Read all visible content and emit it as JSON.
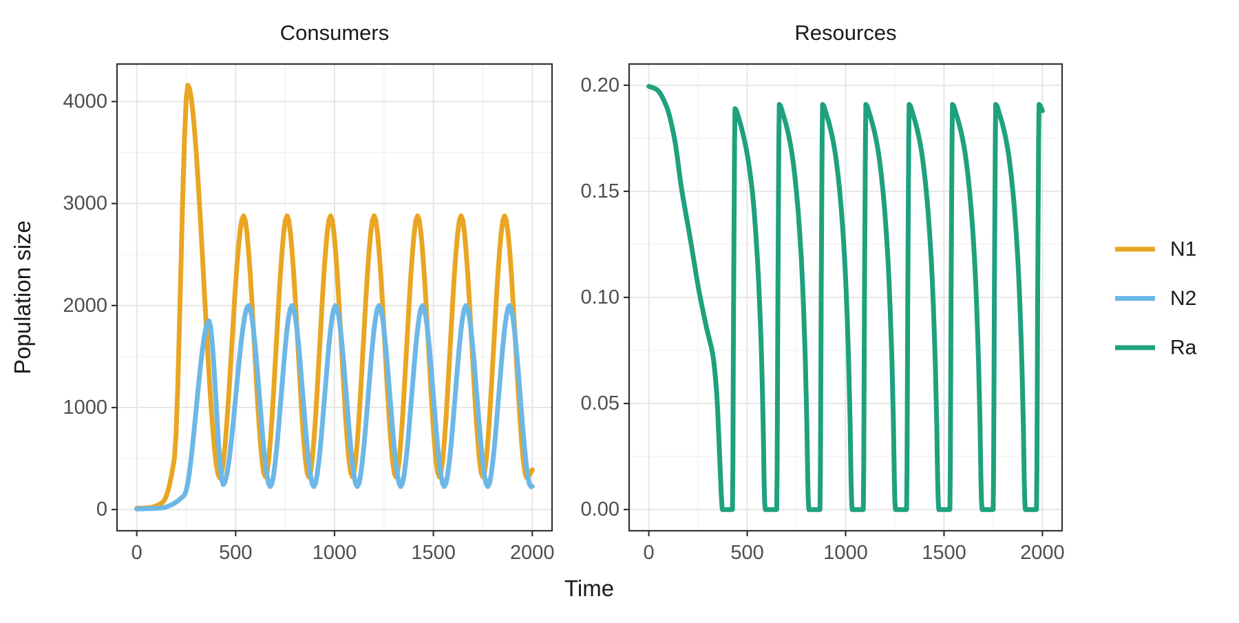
{
  "figure": {
    "background": "#FFFFFF",
    "panel_background": "#FFFFFF",
    "panel_border_color": "#333333",
    "grid_major_color": "#E6E6E6",
    "grid_minor_color": "#F2F2F2",
    "tick_mark_color": "#333333",
    "tick_label_color": "#4D4D4D",
    "title_color": "#1A1A1A"
  },
  "axes": {
    "x_title": "Time",
    "y_title_left": "Population size",
    "x_range": [
      0,
      2000
    ],
    "x_ticks": [
      0,
      500,
      1000,
      1500,
      2000
    ],
    "x_tick_labels": [
      "0",
      "500",
      "1000",
      "1500",
      "2000"
    ]
  },
  "legend": {
    "position": "right",
    "items": [
      {
        "label": "N1",
        "color": "#E9A623"
      },
      {
        "label": "N2",
        "color": "#6DB7E7"
      },
      {
        "label": "Ra",
        "color": "#1FA17D"
      }
    ]
  },
  "chart_data": [
    {
      "type": "line",
      "title": "Consumers",
      "xlabel": "Time",
      "ylabel": "Population size",
      "xlim": [
        0,
        2000
      ],
      "ylim": [
        0,
        4160
      ],
      "y_ticks": [
        0,
        1000,
        2000,
        3000,
        4000
      ],
      "y_tick_labels": [
        "0",
        "1000",
        "2000",
        "3000",
        "4000"
      ],
      "grid": true,
      "series": [
        {
          "name": "N1",
          "color": "#E9A623",
          "keypoints": [
            [
              0,
              12
            ],
            [
              60,
              18
            ],
            [
              130,
              70
            ],
            [
              190,
              500
            ],
            [
              258,
              4160
            ],
            [
              420,
              310
            ],
            [
              540,
              2880
            ],
            [
              650,
              320
            ],
            [
              760,
              2880
            ],
            [
              870,
              320
            ],
            [
              980,
              2880
            ],
            [
              1090,
              320
            ],
            [
              1200,
              2880
            ],
            [
              1310,
              320
            ],
            [
              1420,
              2880
            ],
            [
              1530,
              320
            ],
            [
              1640,
              2880
            ],
            [
              1750,
              320
            ],
            [
              1860,
              2880
            ],
            [
              1972,
              312
            ],
            [
              2000,
              390
            ]
          ]
        },
        {
          "name": "N2",
          "color": "#6DB7E7",
          "keypoints": [
            [
              0,
              5
            ],
            [
              120,
              15
            ],
            [
              240,
              140
            ],
            [
              365,
              1850
            ],
            [
              437,
              245
            ],
            [
              565,
              2000
            ],
            [
              675,
              225
            ],
            [
              785,
              2000
            ],
            [
              895,
              225
            ],
            [
              1005,
              2000
            ],
            [
              1115,
              225
            ],
            [
              1225,
              2000
            ],
            [
              1335,
              225
            ],
            [
              1445,
              2000
            ],
            [
              1555,
              225
            ],
            [
              1665,
              2000
            ],
            [
              1775,
              225
            ],
            [
              1885,
              2000
            ],
            [
              1993,
              224
            ],
            [
              2000,
              228
            ]
          ]
        }
      ]
    },
    {
      "type": "line",
      "title": "Resources",
      "xlabel": "Time",
      "ylabel": "",
      "xlim": [
        0,
        2000
      ],
      "ylim": [
        0,
        0.2
      ],
      "y_ticks": [
        0,
        0.05,
        0.1,
        0.15,
        0.2
      ],
      "y_tick_labels": [
        "0.00",
        "0.05",
        "0.10",
        "0.15",
        "0.20"
      ],
      "grid": true,
      "series": [
        {
          "name": "Ra",
          "color": "#1FA17D",
          "keypoints": [
            [
              0,
              0.1995
            ],
            [
              40,
              0.198
            ],
            [
              90,
              0.19
            ],
            [
              130,
              0.175
            ],
            [
              165,
              0.152
            ],
            [
              210,
              0.128
            ],
            [
              255,
              0.103
            ],
            [
              295,
              0.085
            ],
            [
              325,
              0.073
            ],
            [
              345,
              0.055
            ],
            [
              362,
              0.02
            ],
            [
              370,
              0.004
            ],
            [
              374,
              0
            ],
            [
              425,
              0
            ],
            [
              431,
              0.1
            ],
            [
              438,
              0.189
            ],
            [
              455,
              0.185
            ],
            [
              495,
              0.17
            ],
            [
              527,
              0.149
            ],
            [
              552,
              0.118
            ],
            [
              570,
              0.08
            ],
            [
              581,
              0.04
            ],
            [
              588,
              0.005
            ],
            [
              592,
              0
            ],
            [
              650,
              0
            ],
            [
              656,
              0.1
            ],
            [
              663,
              0.191
            ],
            [
              680,
              0.187
            ],
            [
              720,
              0.172
            ],
            [
              750,
              0.15
            ],
            [
              775,
              0.118
            ],
            [
              792,
              0.08
            ],
            [
              803,
              0.04
            ],
            [
              810,
              0.005
            ],
            [
              814,
              0
            ],
            [
              870,
              0
            ],
            [
              876,
              0.1
            ],
            [
              883,
              0.191
            ],
            [
              900,
              0.187
            ],
            [
              940,
              0.172
            ],
            [
              970,
              0.15
            ],
            [
              995,
              0.118
            ],
            [
              1012,
              0.08
            ],
            [
              1023,
              0.04
            ],
            [
              1030,
              0.005
            ],
            [
              1034,
              0
            ],
            [
              1090,
              0
            ],
            [
              1096,
              0.1
            ],
            [
              1103,
              0.191
            ],
            [
              1120,
              0.187
            ],
            [
              1160,
              0.172
            ],
            [
              1190,
              0.15
            ],
            [
              1215,
              0.118
            ],
            [
              1232,
              0.08
            ],
            [
              1243,
              0.04
            ],
            [
              1250,
              0.005
            ],
            [
              1254,
              0
            ],
            [
              1310,
              0
            ],
            [
              1316,
              0.1
            ],
            [
              1323,
              0.191
            ],
            [
              1340,
              0.187
            ],
            [
              1380,
              0.172
            ],
            [
              1410,
              0.15
            ],
            [
              1435,
              0.118
            ],
            [
              1452,
              0.08
            ],
            [
              1463,
              0.04
            ],
            [
              1470,
              0.005
            ],
            [
              1474,
              0
            ],
            [
              1530,
              0
            ],
            [
              1536,
              0.1
            ],
            [
              1543,
              0.191
            ],
            [
              1560,
              0.187
            ],
            [
              1600,
              0.172
            ],
            [
              1630,
              0.15
            ],
            [
              1655,
              0.118
            ],
            [
              1672,
              0.08
            ],
            [
              1683,
              0.04
            ],
            [
              1690,
              0.005
            ],
            [
              1694,
              0
            ],
            [
              1750,
              0
            ],
            [
              1756,
              0.1
            ],
            [
              1763,
              0.191
            ],
            [
              1780,
              0.187
            ],
            [
              1820,
              0.172
            ],
            [
              1850,
              0.15
            ],
            [
              1875,
              0.118
            ],
            [
              1892,
              0.08
            ],
            [
              1903,
              0.04
            ],
            [
              1910,
              0.005
            ],
            [
              1914,
              0
            ],
            [
              1970,
              0
            ],
            [
              1976,
              0.1
            ],
            [
              1983,
              0.191
            ],
            [
              2000,
              0.188
            ]
          ]
        }
      ]
    }
  ]
}
